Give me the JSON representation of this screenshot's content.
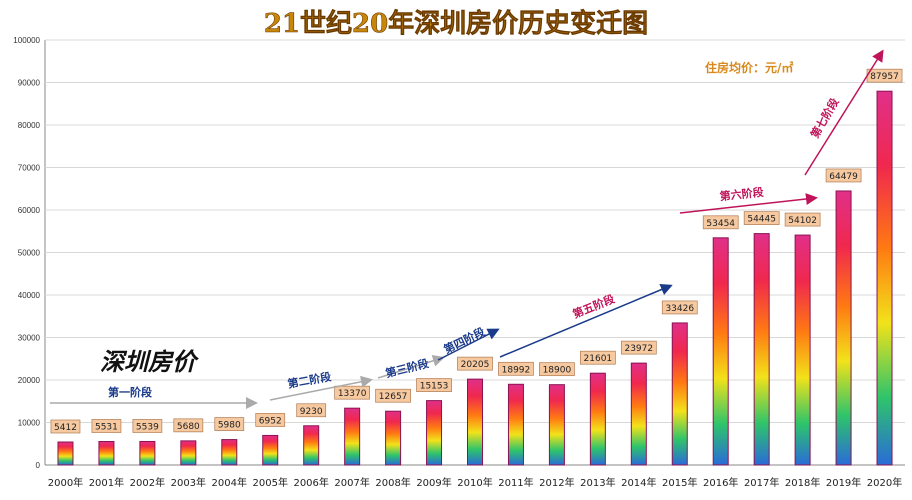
{
  "chart_data": {
    "type": "bar",
    "title": "21世纪20年深圳房价历史变迁图",
    "subtitle": "深圳房价",
    "unit_label": "住房均价：元/㎡",
    "categories": [
      "2000年",
      "2001年",
      "2002年",
      "2003年",
      "2004年",
      "2005年",
      "2006年",
      "2007年",
      "2008年",
      "2009年",
      "2010年",
      "2011年",
      "2012年",
      "2013年",
      "2014年",
      "2015年",
      "2016年",
      "2017年",
      "2018年",
      "2019年",
      "2020年"
    ],
    "values": [
      5412,
      5531,
      5539,
      5680,
      5980,
      6952,
      9230,
      13370,
      12657,
      15153,
      20205,
      18992,
      18900,
      21601,
      23972,
      33426,
      53454,
      54445,
      54102,
      64479,
      87957
    ],
    "ylim": [
      0,
      100000
    ],
    "yticks": [
      0,
      10000,
      20000,
      30000,
      40000,
      50000,
      60000,
      70000,
      80000,
      90000,
      100000
    ],
    "grid": true,
    "stages": [
      {
        "label": "第一阶段",
        "color": "#1a3a8a"
      },
      {
        "label": "第二阶段",
        "color": "#1a3a8a"
      },
      {
        "label": "第三阶段",
        "color": "#1a3a8a"
      },
      {
        "label": "第四阶段",
        "color": "#1a3a8a"
      },
      {
        "label": "第五阶段",
        "color": "#c0145a"
      },
      {
        "label": "第六阶段",
        "color": "#c0145a"
      },
      {
        "label": "第七阶段",
        "color": "#c0145a"
      }
    ],
    "colors": {
      "title": "#c8860a",
      "label_box": "#f6c9a0",
      "unit": "#d98a1c"
    }
  }
}
